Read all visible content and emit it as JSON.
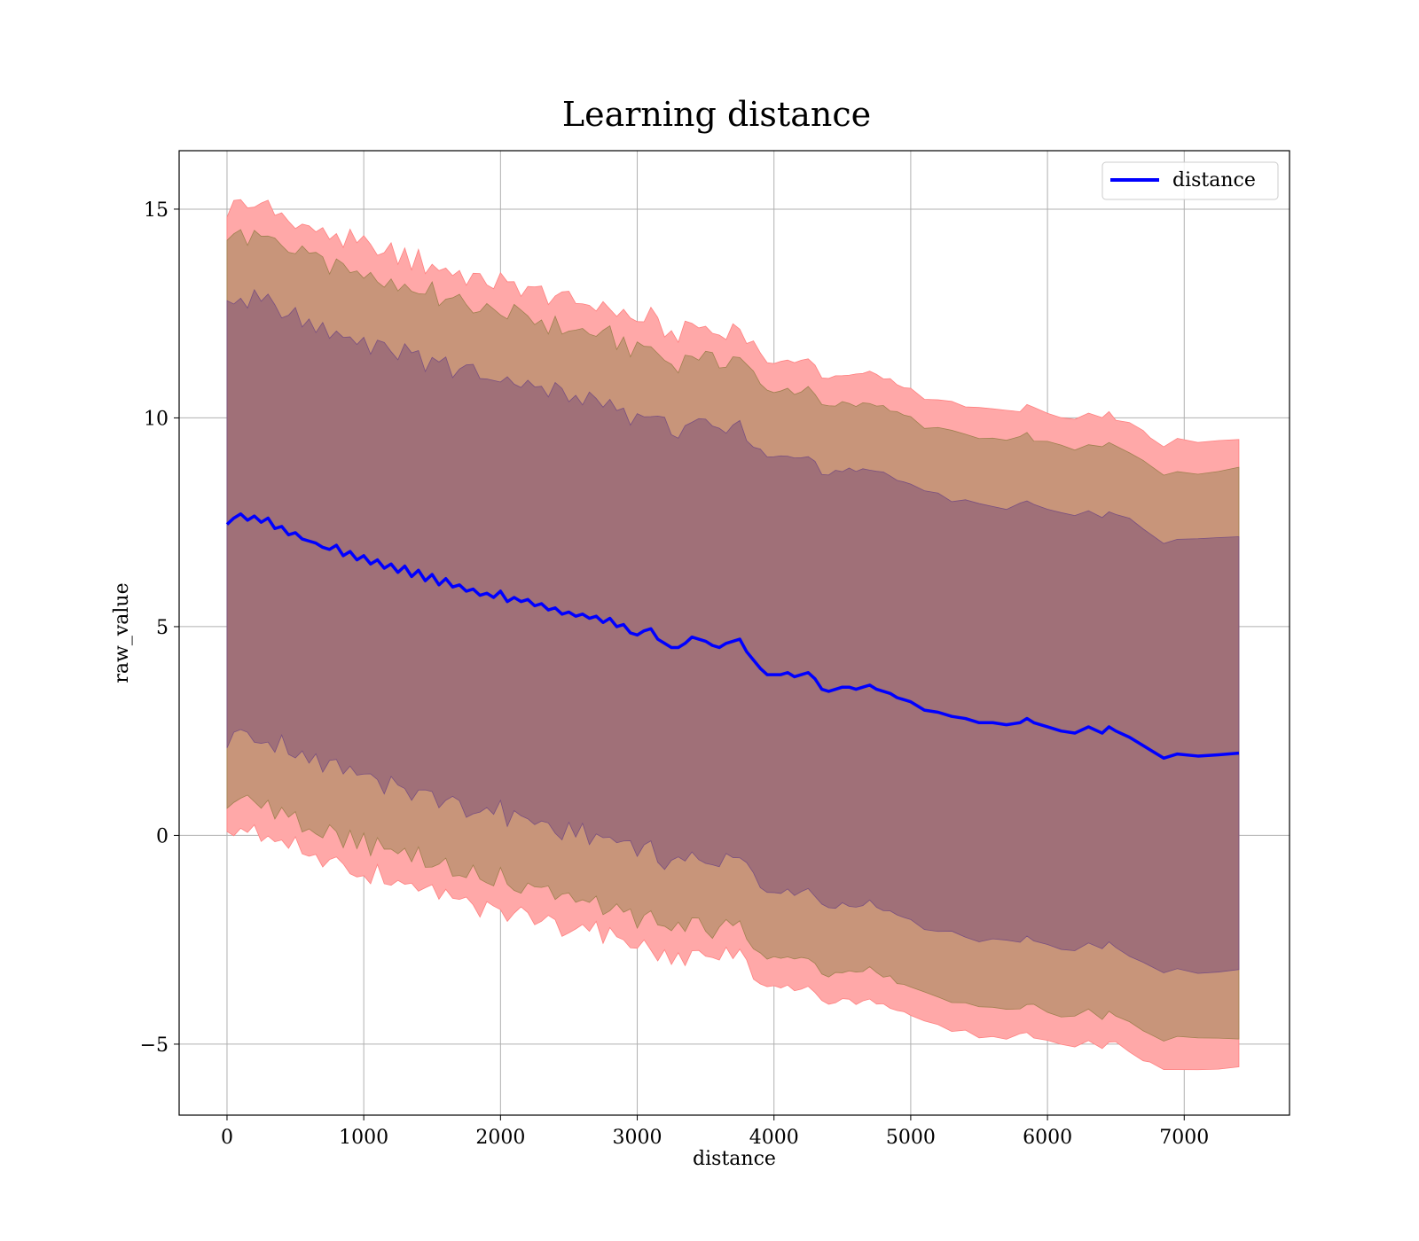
{
  "chart_data": {
    "type": "line",
    "title": "Learning distance",
    "xlabel": "distance",
    "ylabel": "raw_value",
    "xlim": [
      -350,
      7770
    ],
    "ylim": [
      -6.7,
      16.4
    ],
    "xticks": [
      0,
      1000,
      2000,
      3000,
      4000,
      5000,
      6000,
      7000
    ],
    "xtick_labels": [
      "0",
      "1000",
      "2000",
      "3000",
      "4000",
      "5000",
      "6000",
      "7000"
    ],
    "yticks": [
      -5,
      0,
      5,
      10,
      15
    ],
    "ytick_labels": [
      "−5",
      "0",
      "5",
      "10",
      "15"
    ],
    "grid": true,
    "legend_position": "top-right",
    "colors": {
      "line": "#0000ff",
      "band_1sd": "#a07078",
      "band_2sd": "#c8957a",
      "band_3sd": "#ffa8a8",
      "band_3sd_edge": "#ff8080",
      "band_2sd_edge": "#a08050",
      "band_1sd_edge": "#7a5080"
    },
    "series": [
      {
        "name": "distance",
        "band_offsets_sd": [
          5.2,
          6.8,
          7.5
        ],
        "x": [
          0,
          50,
          100,
          150,
          200,
          250,
          300,
          350,
          400,
          450,
          500,
          550,
          600,
          650,
          700,
          750,
          800,
          850,
          900,
          950,
          1000,
          1050,
          1100,
          1150,
          1200,
          1250,
          1300,
          1350,
          1400,
          1450,
          1500,
          1550,
          1600,
          1650,
          1700,
          1750,
          1800,
          1850,
          1900,
          1950,
          2000,
          2050,
          2100,
          2150,
          2200,
          2250,
          2300,
          2350,
          2400,
          2450,
          2500,
          2550,
          2600,
          2650,
          2700,
          2750,
          2800,
          2850,
          2900,
          2950,
          3000,
          3050,
          3100,
          3150,
          3200,
          3250,
          3300,
          3350,
          3400,
          3450,
          3500,
          3550,
          3600,
          3650,
          3700,
          3750,
          3800,
          3850,
          3900,
          3950,
          4000,
          4050,
          4100,
          4150,
          4200,
          4250,
          4300,
          4350,
          4400,
          4450,
          4500,
          4550,
          4600,
          4650,
          4700,
          4750,
          4800,
          4850,
          4900,
          4950,
          5000,
          5100,
          5200,
          5300,
          5400,
          5500,
          5600,
          5700,
          5800,
          5850,
          5900,
          6000,
          6100,
          6200,
          6300,
          6400,
          6450,
          6500,
          6600,
          6700,
          6750,
          6850,
          6950,
          7100,
          7250,
          7400
        ],
        "y": [
          7.45,
          7.6,
          7.7,
          7.55,
          7.65,
          7.5,
          7.6,
          7.35,
          7.4,
          7.2,
          7.25,
          7.1,
          7.05,
          7.0,
          6.9,
          6.85,
          6.95,
          6.7,
          6.8,
          6.6,
          6.7,
          6.5,
          6.6,
          6.4,
          6.5,
          6.3,
          6.45,
          6.2,
          6.35,
          6.1,
          6.25,
          6.0,
          6.15,
          5.95,
          6.0,
          5.85,
          5.9,
          5.75,
          5.8,
          5.7,
          5.85,
          5.6,
          5.7,
          5.6,
          5.65,
          5.5,
          5.55,
          5.4,
          5.45,
          5.3,
          5.35,
          5.25,
          5.3,
          5.2,
          5.25,
          5.1,
          5.2,
          5.0,
          5.05,
          4.85,
          4.8,
          4.9,
          4.95,
          4.7,
          4.6,
          4.5,
          4.5,
          4.6,
          4.75,
          4.7,
          4.65,
          4.55,
          4.5,
          4.6,
          4.65,
          4.7,
          4.4,
          4.2,
          4.0,
          3.85,
          3.85,
          3.85,
          3.9,
          3.8,
          3.85,
          3.9,
          3.75,
          3.5,
          3.45,
          3.5,
          3.55,
          3.55,
          3.5,
          3.55,
          3.6,
          3.5,
          3.45,
          3.4,
          3.3,
          3.25,
          3.2,
          3.0,
          2.95,
          2.85,
          2.8,
          2.7,
          2.7,
          2.65,
          2.7,
          2.8,
          2.7,
          2.6,
          2.5,
          2.45,
          2.6,
          2.45,
          2.6,
          2.5,
          2.35,
          2.15,
          2.05,
          1.85,
          1.95,
          1.9,
          1.93,
          1.97
        ]
      }
    ]
  }
}
